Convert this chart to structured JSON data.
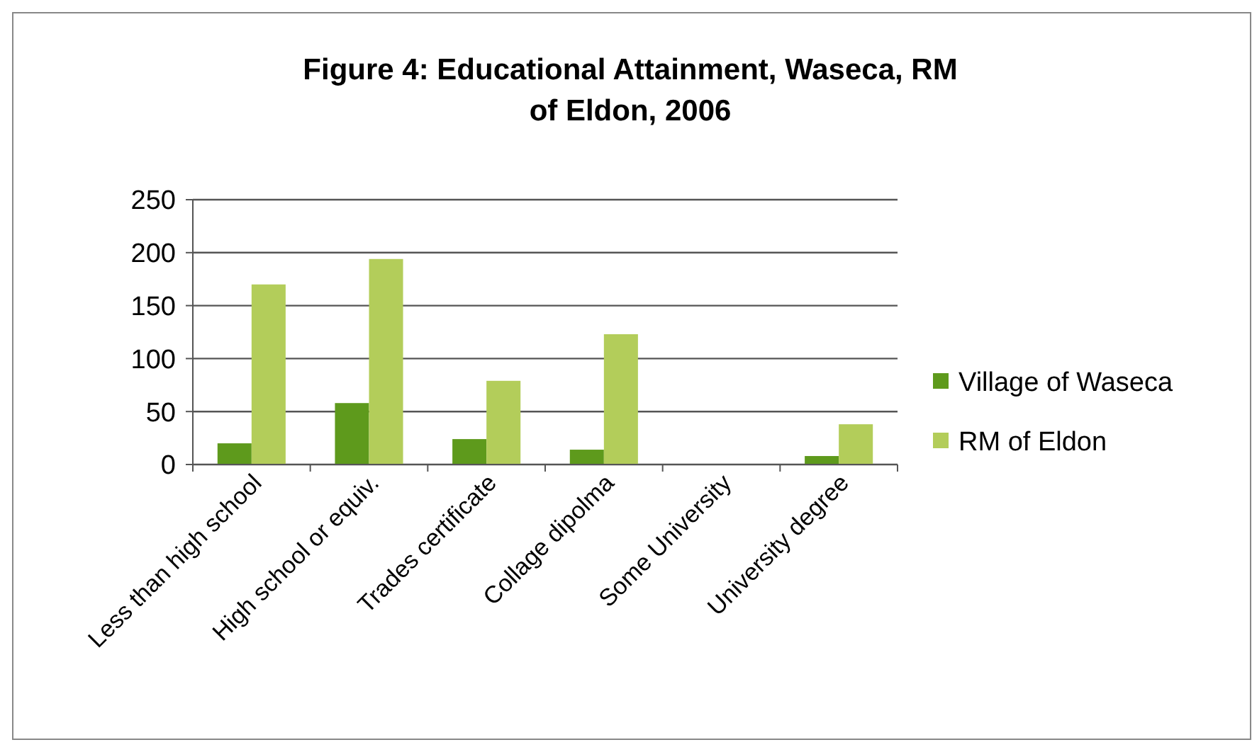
{
  "chart_data": {
    "type": "bar",
    "title": "Figure 4: Educational Attainment, Waseca, RM of Eldon, 2006",
    "categories": [
      "Less than high school",
      "High school or equiv.",
      "Trades certificate",
      "Collage dipolma",
      "Some University",
      "University degree"
    ],
    "series": [
      {
        "name": "Village of Waseca",
        "color": "#5e9a1c",
        "values": [
          20,
          58,
          24,
          14,
          0,
          8
        ]
      },
      {
        "name": "RM of Eldon",
        "color": "#b3cd5a",
        "values": [
          170,
          194,
          79,
          123,
          0,
          38
        ]
      }
    ],
    "ylim": [
      0,
      250
    ],
    "yticks": [
      0,
      50,
      100,
      150,
      200,
      250
    ],
    "grid": "y",
    "legend": "right"
  }
}
